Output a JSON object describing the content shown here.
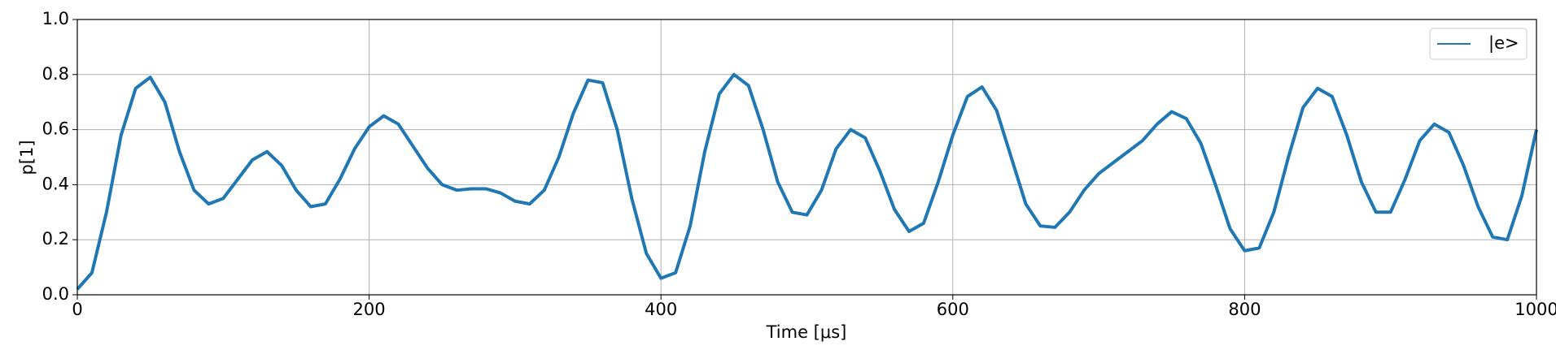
{
  "chart_data": {
    "type": "line",
    "xlabel": "Time [μs]",
    "ylabel": "p[1]",
    "x": [
      0,
      10,
      20,
      30,
      40,
      50,
      60,
      70,
      80,
      90,
      100,
      110,
      120,
      130,
      140,
      150,
      160,
      170,
      180,
      190,
      200,
      210,
      220,
      230,
      240,
      250,
      260,
      270,
      280,
      290,
      300,
      310,
      320,
      330,
      340,
      350,
      360,
      370,
      380,
      390,
      400,
      410,
      420,
      430,
      440,
      450,
      460,
      470,
      480,
      490,
      500,
      510,
      520,
      530,
      540,
      550,
      560,
      570,
      580,
      590,
      600,
      610,
      620,
      630,
      640,
      650,
      660,
      670,
      680,
      690,
      700,
      710,
      720,
      730,
      740,
      750,
      760,
      770,
      780,
      790,
      800,
      810,
      820,
      830,
      840,
      850,
      860,
      870,
      880,
      890,
      900,
      910,
      920,
      930,
      940,
      950,
      960,
      970,
      980,
      990,
      1000
    ],
    "series": [
      {
        "name": "|e>",
        "color": "#1f77b4",
        "values": [
          0.02,
          0.08,
          0.3,
          0.58,
          0.75,
          0.79,
          0.7,
          0.52,
          0.38,
          0.33,
          0.35,
          0.42,
          0.49,
          0.52,
          0.47,
          0.38,
          0.32,
          0.33,
          0.42,
          0.53,
          0.61,
          0.65,
          0.62,
          0.54,
          0.46,
          0.4,
          0.38,
          0.385,
          0.385,
          0.37,
          0.34,
          0.33,
          0.38,
          0.5,
          0.66,
          0.78,
          0.77,
          0.6,
          0.35,
          0.15,
          0.06,
          0.08,
          0.25,
          0.52,
          0.73,
          0.8,
          0.76,
          0.6,
          0.41,
          0.3,
          0.29,
          0.38,
          0.53,
          0.6,
          0.57,
          0.45,
          0.31,
          0.23,
          0.26,
          0.41,
          0.58,
          0.72,
          0.755,
          0.67,
          0.5,
          0.33,
          0.25,
          0.245,
          0.3,
          0.38,
          0.44,
          0.48,
          0.52,
          0.56,
          0.62,
          0.665,
          0.64,
          0.55,
          0.4,
          0.24,
          0.16,
          0.17,
          0.3,
          0.5,
          0.68,
          0.75,
          0.72,
          0.58,
          0.41,
          0.3,
          0.3,
          0.42,
          0.56,
          0.62,
          0.59,
          0.47,
          0.32,
          0.21,
          0.2,
          0.36,
          0.6
        ]
      }
    ],
    "xlim": [
      0,
      1000
    ],
    "ylim": [
      0,
      1
    ],
    "xticks": [
      0,
      200,
      400,
      600,
      800,
      1000
    ],
    "yticks": [
      {
        "value": 0,
        "label": "0.0"
      },
      {
        "value": 0.2,
        "label": "0.2"
      },
      {
        "value": 0.4,
        "label": "0.4"
      },
      {
        "value": 0.6,
        "label": "0.6"
      },
      {
        "value": 0.8,
        "label": "0.8"
      },
      {
        "value": 1,
        "label": "1.0"
      }
    ],
    "grid": true,
    "legend": "upper right"
  }
}
